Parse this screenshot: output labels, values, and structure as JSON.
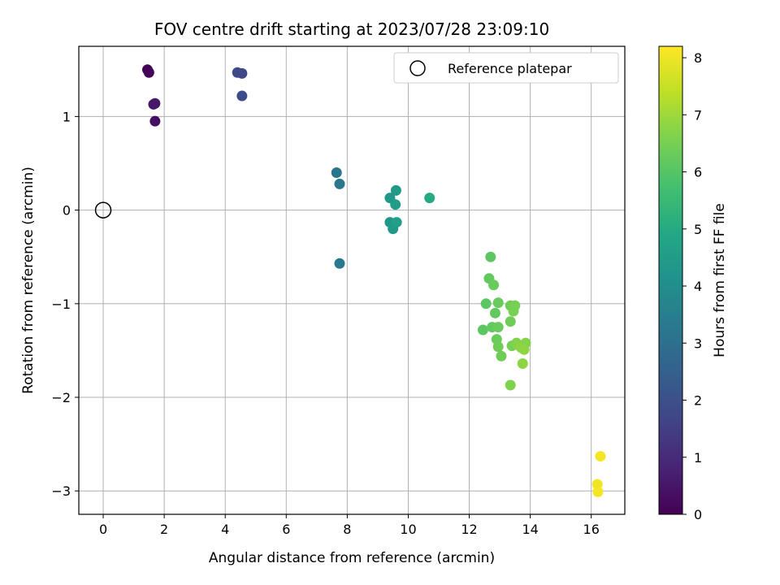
{
  "chart_data": {
    "type": "scatter",
    "title": "FOV centre drift starting at 2023/07/28 23:09:10",
    "xlabel": "Angular distance from reference (arcmin)",
    "ylabel": "Rotation from reference (arcmin)",
    "xlim": [
      -0.8,
      17.1
    ],
    "ylim": [
      -3.25,
      1.75
    ],
    "xticks": [
      0,
      2,
      4,
      6,
      8,
      10,
      12,
      14,
      16
    ],
    "yticks": [
      1,
      0,
      -1,
      -2,
      -3
    ],
    "ytick_labels": [
      "1",
      "0",
      "−1",
      "−2",
      "−3"
    ],
    "grid": true,
    "legend": {
      "placement": "top-right",
      "entries": [
        "Reference platepar"
      ]
    },
    "reference_point": {
      "name": "Reference platepar",
      "x": 0,
      "y": 0,
      "marker": "open-circle"
    },
    "colorbar": {
      "label": "Hours from first FF file",
      "range": [
        0,
        8.2
      ],
      "ticks": [
        0,
        1,
        2,
        3,
        4,
        5,
        6,
        7,
        8
      ],
      "colormap": "viridis"
    },
    "points": [
      {
        "x": 1.45,
        "y": 1.5,
        "c": 0.05
      },
      {
        "x": 1.5,
        "y": 1.47,
        "c": 0.1
      },
      {
        "x": 1.7,
        "y": 1.14,
        "c": 0.6
      },
      {
        "x": 1.65,
        "y": 1.13,
        "c": 0.55
      },
      {
        "x": 1.7,
        "y": 0.95,
        "c": 0.3
      },
      {
        "x": 4.4,
        "y": 1.47,
        "c": 1.75
      },
      {
        "x": 4.55,
        "y": 1.46,
        "c": 1.8
      },
      {
        "x": 4.55,
        "y": 1.22,
        "c": 1.85
      },
      {
        "x": 7.65,
        "y": 0.4,
        "c": 3.2
      },
      {
        "x": 7.75,
        "y": 0.28,
        "c": 3.25
      },
      {
        "x": 7.75,
        "y": -0.57,
        "c": 3.3
      },
      {
        "x": 9.6,
        "y": 0.21,
        "c": 4.4
      },
      {
        "x": 9.4,
        "y": 0.13,
        "c": 4.3
      },
      {
        "x": 9.58,
        "y": 0.06,
        "c": 4.5
      },
      {
        "x": 9.4,
        "y": -0.13,
        "c": 4.3
      },
      {
        "x": 9.5,
        "y": -0.2,
        "c": 4.4
      },
      {
        "x": 9.62,
        "y": -0.13,
        "c": 4.6
      },
      {
        "x": 10.7,
        "y": 0.13,
        "c": 5.0
      },
      {
        "x": 12.7,
        "y": -0.5,
        "c": 6.1
      },
      {
        "x": 12.65,
        "y": -0.73,
        "c": 6.2
      },
      {
        "x": 12.8,
        "y": -0.8,
        "c": 6.3
      },
      {
        "x": 12.55,
        "y": -1.0,
        "c": 6.1
      },
      {
        "x": 12.95,
        "y": -0.99,
        "c": 6.3
      },
      {
        "x": 12.85,
        "y": -1.1,
        "c": 6.2
      },
      {
        "x": 13.35,
        "y": -1.02,
        "c": 6.4
      },
      {
        "x": 13.5,
        "y": -1.02,
        "c": 6.5
      },
      {
        "x": 13.45,
        "y": -1.08,
        "c": 6.5
      },
      {
        "x": 13.35,
        "y": -1.19,
        "c": 6.4
      },
      {
        "x": 12.45,
        "y": -1.28,
        "c": 6.1
      },
      {
        "x": 12.75,
        "y": -1.25,
        "c": 6.2
      },
      {
        "x": 12.95,
        "y": -1.25,
        "c": 6.3
      },
      {
        "x": 12.9,
        "y": -1.38,
        "c": 6.3
      },
      {
        "x": 12.95,
        "y": -1.46,
        "c": 6.4
      },
      {
        "x": 13.05,
        "y": -1.56,
        "c": 6.4
      },
      {
        "x": 13.4,
        "y": -1.45,
        "c": 6.5
      },
      {
        "x": 13.55,
        "y": -1.42,
        "c": 6.6
      },
      {
        "x": 13.6,
        "y": -1.44,
        "c": 6.7
      },
      {
        "x": 13.7,
        "y": -1.47,
        "c": 6.8
      },
      {
        "x": 13.85,
        "y": -1.42,
        "c": 6.7
      },
      {
        "x": 13.8,
        "y": -1.49,
        "c": 6.8
      },
      {
        "x": 13.75,
        "y": -1.64,
        "c": 6.8
      },
      {
        "x": 13.35,
        "y": -1.87,
        "c": 6.6
      },
      {
        "x": 16.3,
        "y": -2.63,
        "c": 8.1
      },
      {
        "x": 16.2,
        "y": -2.93,
        "c": 8.05
      },
      {
        "x": 16.22,
        "y": -3.01,
        "c": 8.1
      }
    ]
  }
}
